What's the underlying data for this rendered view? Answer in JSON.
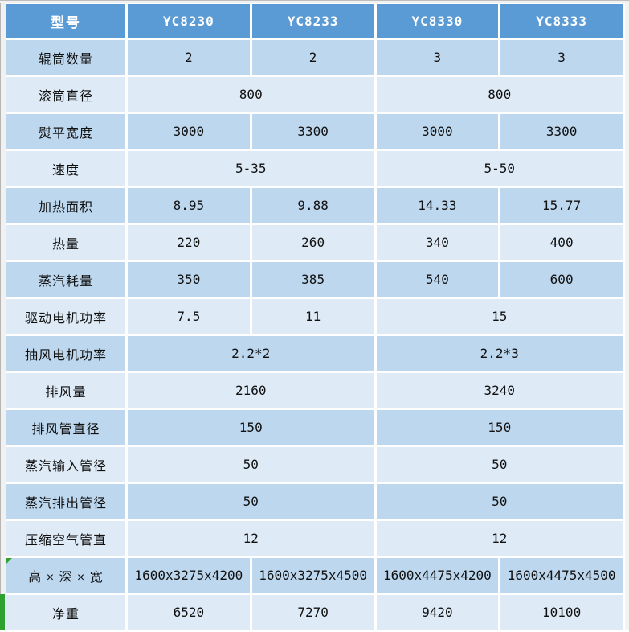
{
  "colors": {
    "header_bg": "#5b9bd5",
    "row_dark": "#bdd7ee",
    "row_light": "#deebf7",
    "gridline": "#ffffff",
    "accent_green": "#2ea12e"
  },
  "table": {
    "header": {
      "label": "型号",
      "models": [
        "YC8230",
        "YC8233",
        "YC8330",
        "YC8333"
      ]
    },
    "rows": [
      {
        "label": "辊筒数量",
        "cells": [
          {
            "v": "2"
          },
          {
            "v": "2"
          },
          {
            "v": "3"
          },
          {
            "v": "3"
          }
        ]
      },
      {
        "label": "滚筒直径",
        "cells": [
          {
            "v": "800",
            "span": 2
          },
          {
            "v": "800",
            "span": 2
          }
        ]
      },
      {
        "label": "熨平宽度",
        "cells": [
          {
            "v": "3000"
          },
          {
            "v": "3300"
          },
          {
            "v": "3000"
          },
          {
            "v": "3300"
          }
        ]
      },
      {
        "label": "速度",
        "cells": [
          {
            "v": "5-35",
            "span": 2
          },
          {
            "v": "5-50",
            "span": 2
          }
        ]
      },
      {
        "label": "加热面积",
        "cells": [
          {
            "v": "8.95"
          },
          {
            "v": "9.88"
          },
          {
            "v": "14.33"
          },
          {
            "v": "15.77"
          }
        ]
      },
      {
        "label": "热量",
        "cells": [
          {
            "v": "220"
          },
          {
            "v": "260"
          },
          {
            "v": "340"
          },
          {
            "v": "400"
          }
        ]
      },
      {
        "label": "蒸汽耗量",
        "cells": [
          {
            "v": "350"
          },
          {
            "v": "385"
          },
          {
            "v": "540"
          },
          {
            "v": "600"
          }
        ]
      },
      {
        "label": "驱动电机功率",
        "cells": [
          {
            "v": "7.5"
          },
          {
            "v": "11"
          },
          {
            "v": "15",
            "span": 2
          }
        ]
      },
      {
        "label": "抽风电机功率",
        "cells": [
          {
            "v": "2.2*2",
            "span": 2
          },
          {
            "v": "2.2*3",
            "span": 2
          }
        ]
      },
      {
        "label": "排风量",
        "cells": [
          {
            "v": "2160",
            "span": 2
          },
          {
            "v": "3240",
            "span": 2
          }
        ]
      },
      {
        "label": "排风管直径",
        "cells": [
          {
            "v": "150",
            "span": 2
          },
          {
            "v": "150",
            "span": 2
          }
        ]
      },
      {
        "label": "蒸汽输入管径",
        "cells": [
          {
            "v": "50",
            "span": 2
          },
          {
            "v": "50",
            "span": 2
          }
        ]
      },
      {
        "label": "蒸汽排出管径",
        "cells": [
          {
            "v": "50",
            "span": 2
          },
          {
            "v": "50",
            "span": 2
          }
        ]
      },
      {
        "label": "压缩空气管直",
        "cells": [
          {
            "v": "12",
            "span": 2
          },
          {
            "v": "12",
            "span": 2
          }
        ]
      },
      {
        "label": "高 × 深 × 宽",
        "green_marker": true,
        "cells": [
          {
            "v": "1600x3275x4200"
          },
          {
            "v": "1600x3275x4500"
          },
          {
            "v": "1600x4475x4200"
          },
          {
            "v": "1600x4475x4500"
          }
        ]
      },
      {
        "label": "净重",
        "cells": [
          {
            "v": "6520"
          },
          {
            "v": "7270"
          },
          {
            "v": "9420"
          },
          {
            "v": "10100"
          }
        ]
      }
    ]
  }
}
